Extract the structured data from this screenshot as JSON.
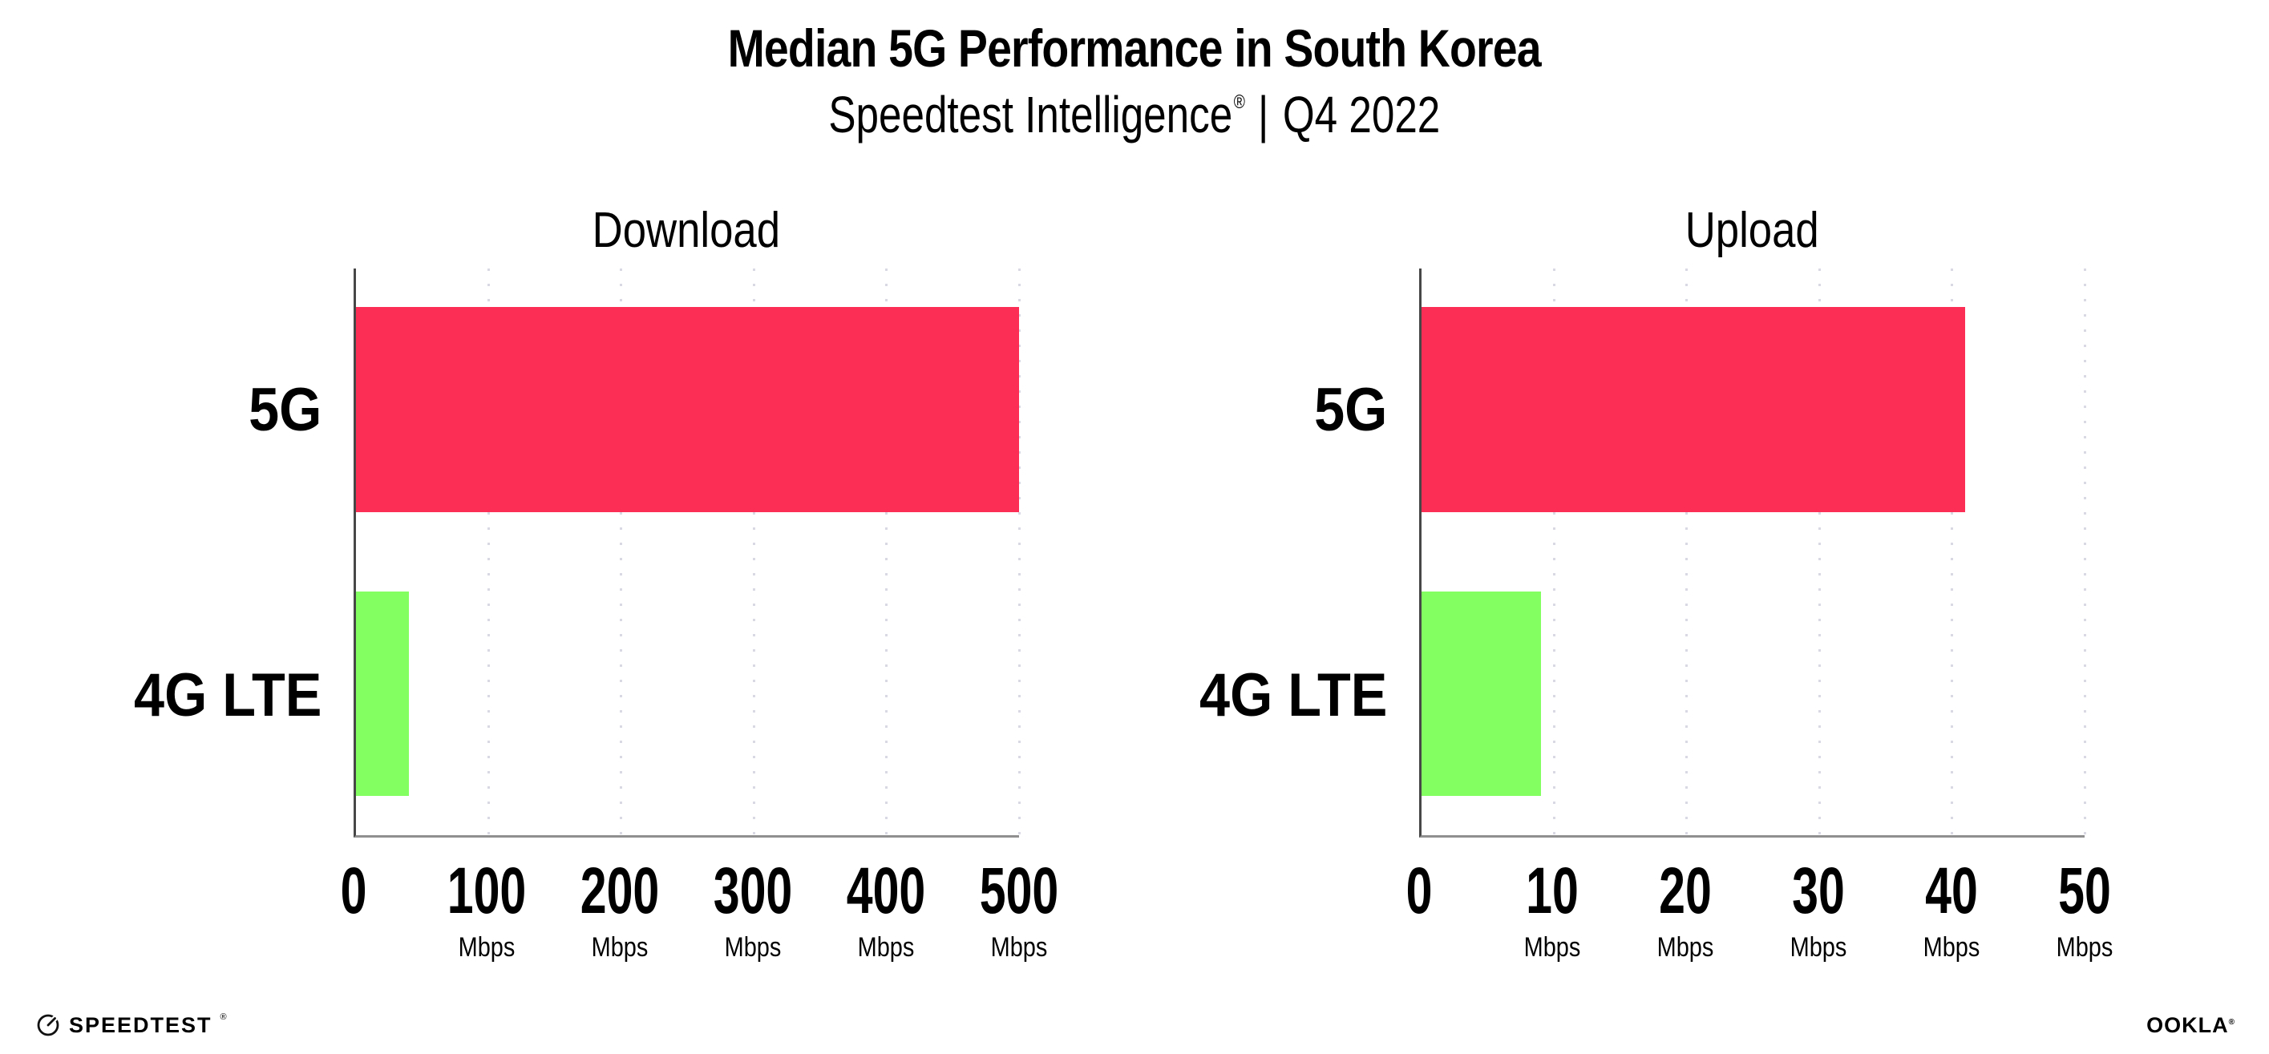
{
  "header": {
    "title": "Median 5G Performance in South Korea",
    "subtitle_brand": "Speedtest Intelligence",
    "subtitle_reg": "®",
    "subtitle_sep": "|",
    "subtitle_period": "Q4 2022"
  },
  "chart_data": [
    {
      "type": "bar",
      "orientation": "horizontal",
      "title": "Download",
      "categories": [
        "5G",
        "4G LTE"
      ],
      "values": [
        500,
        40
      ],
      "unit": "Mbps",
      "xlim": [
        0,
        500
      ],
      "ticks": [
        0,
        100,
        200,
        300,
        400,
        500
      ],
      "tick_unit_label": "Mbps",
      "bar_colors": [
        "#fc2e56",
        "#84ff62"
      ],
      "grid": "vertical-dotted",
      "legend": "none"
    },
    {
      "type": "bar",
      "orientation": "horizontal",
      "title": "Upload",
      "categories": [
        "5G",
        "4G LTE"
      ],
      "values": [
        41,
        9
      ],
      "unit": "Mbps",
      "xlim": [
        0,
        50
      ],
      "ticks": [
        0,
        10,
        20,
        30,
        40,
        50
      ],
      "tick_unit_label": "Mbps",
      "bar_colors": [
        "#fc2e56",
        "#84ff62"
      ],
      "grid": "vertical-dotted",
      "legend": "none"
    }
  ],
  "footer": {
    "speedtest_text": "SPEEDTEST",
    "speedtest_reg": "®",
    "ookla_text": "OOKLA",
    "ookla_reg": "®"
  },
  "colors": {
    "bar_5g": "#fc2e56",
    "bar_4g_lte": "#84ff62",
    "gridline": "#d8d9e2",
    "x_axis_line": "#8f8f8f",
    "y_axis_line": "#474747",
    "text": "#000000",
    "background": "#ffffff"
  }
}
